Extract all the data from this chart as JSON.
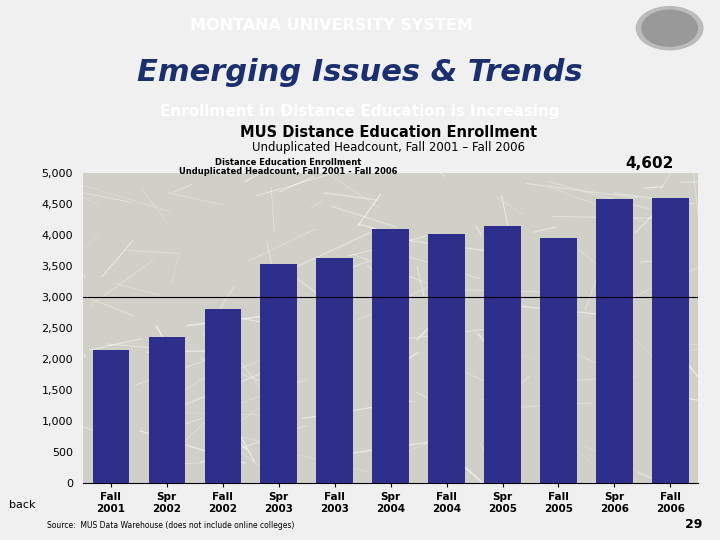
{
  "title_header": "MONTANA UNIVERSITY SYSTEM",
  "title_main": "Emerging Issues & Trends",
  "subtitle_banner": "Enrollment in Distance Education is Increasing",
  "chart_title": "MUS Distance Education Enrollment",
  "chart_subtitle": "Unduplicated Headcount, Fall 2001 – Fall 2006",
  "legend_label_line1": "Distance Education Enrollment",
  "legend_label_line2": "Unduplicated Headcount, Fall 2001 - Fall 2006",
  "final_value_label": "4,602",
  "back_text": "back",
  "categories": [
    "Fall\n2001",
    "Spr\n2002",
    "Fall\n2002",
    "Spr\n2003",
    "Fall\n2003",
    "Spr\n2004",
    "Fall\n2004",
    "Spr\n2005",
    "Fall\n2005",
    "Spr\n2006",
    "Fall\n2006"
  ],
  "values": [
    2150,
    2350,
    2800,
    3530,
    3620,
    4100,
    4020,
    4150,
    3950,
    4580,
    4602
  ],
  "bar_color": "#2E2E8B",
  "header_bg": "#1B2F6E",
  "header_text_color": "#FFFFFF",
  "banner_bg": "#5272B4",
  "banner_text_color": "#FFFFFF",
  "plot_bg": "#D0CFC8",
  "ylim": [
    0,
    5000
  ],
  "yticks": [
    0,
    500,
    1000,
    1500,
    2000,
    2500,
    3000,
    3500,
    4000,
    4500,
    5000
  ],
  "reference_line_y": 3000,
  "source_text": "Source:  MUS Data Warehouse (does not include online colleges)",
  "page_number": "29",
  "background_color": "#F0F0F0",
  "slide_bg": "#FFFFFF"
}
